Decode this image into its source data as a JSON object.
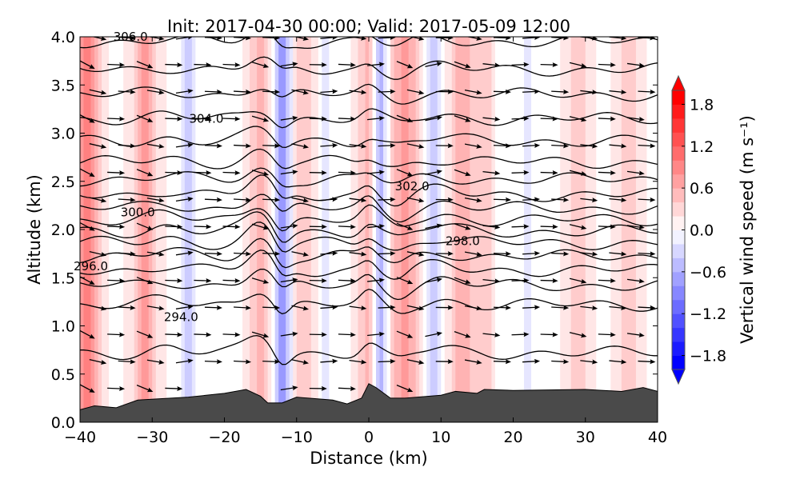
{
  "chart_data": {
    "type": "heatmap",
    "title": "Init: 2017-04-30 00:00; Valid: 2017-05-09 12:00",
    "xlabel": "Distance (km)",
    "ylabel": "Altitude (km)",
    "xlim": [
      -40,
      40
    ],
    "ylim": [
      0,
      4.0
    ],
    "xticks": [
      "−40",
      "−30",
      "−20",
      "−10",
      "0",
      "10",
      "20",
      "30",
      "40"
    ],
    "xtick_values": [
      -40,
      -30,
      -20,
      -10,
      0,
      10,
      20,
      30,
      40
    ],
    "yticks": [
      "0.0",
      "0.5",
      "1.0",
      "1.5",
      "2.0",
      "2.5",
      "3.0",
      "3.5",
      "4.0"
    ],
    "ytick_values": [
      0,
      0.5,
      1.0,
      1.5,
      2.0,
      2.5,
      3.0,
      3.5,
      4.0
    ],
    "colorbar": {
      "label": "Vertical wind speed (m s⁻¹)",
      "range": [
        -2.0,
        2.0
      ],
      "step": 0.2,
      "ticks": [
        "1.8",
        "1.2",
        "0.6",
        "0.0",
        "−0.6",
        "−1.2",
        "−1.8"
      ],
      "tick_values": [
        1.8,
        1.2,
        0.6,
        0.0,
        -0.6,
        -1.2,
        -1.8
      ],
      "cmap": "bwr",
      "extend": "both"
    },
    "contour_labels": [
      {
        "text": "306.0",
        "x": -33,
        "alt": 4.0
      },
      {
        "text": "304.0",
        "x": -22.5,
        "alt": 3.15
      },
      {
        "text": "302.0",
        "x": 6,
        "alt": 2.45
      },
      {
        "text": "300.0",
        "x": -32,
        "alt": 2.18
      },
      {
        "text": "298.0",
        "x": 13,
        "alt": 1.88
      },
      {
        "text": "296.0",
        "x": -38.5,
        "alt": 1.62
      },
      {
        "text": "294.0",
        "x": -26,
        "alt": 1.09
      }
    ],
    "contour_base_altitudes": [
      0.72,
      1.22,
      1.42,
      1.58,
      1.72,
      1.86,
      1.98,
      2.1,
      2.22,
      2.36,
      2.52,
      2.7,
      2.92,
      3.15,
      3.4,
      3.66,
      3.95
    ],
    "w_stripes": [
      {
        "x": -39,
        "w": 0.9,
        "halfwidth": 1.6,
        "top": 1.3
      },
      {
        "x": -31,
        "w": 0.7,
        "halfwidth": 1.5,
        "top": 1.1
      },
      {
        "x": -25,
        "w": -0.5,
        "halfwidth": 1.0,
        "top": 0.9
      },
      {
        "x": -15,
        "w": 0.5,
        "halfwidth": 1.5,
        "top": 4.0
      },
      {
        "x": -12,
        "w": -0.9,
        "halfwidth": 1.2,
        "top": 4.0
      },
      {
        "x": -9,
        "w": 0.4,
        "halfwidth": 1.5,
        "top": 4.0
      },
      {
        "x": -6,
        "w": -0.3,
        "halfwidth": 1.0,
        "top": 4.0
      },
      {
        "x": 0,
        "w": 0.5,
        "halfwidth": 1.5,
        "top": 4.0
      },
      {
        "x": 1.5,
        "w": -0.8,
        "halfwidth": 1.0,
        "top": 4.0
      },
      {
        "x": 5,
        "w": 0.7,
        "halfwidth": 1.8,
        "top": 4.0
      },
      {
        "x": 9,
        "w": -0.5,
        "halfwidth": 1.2,
        "top": 1.6
      },
      {
        "x": 13,
        "w": 0.6,
        "halfwidth": 1.6,
        "top": 4.0
      },
      {
        "x": 16,
        "w": 0.4,
        "halfwidth": 1.0,
        "top": 1.2
      },
      {
        "x": 22,
        "w": -0.2,
        "halfwidth": 2.0,
        "top": 4.0
      },
      {
        "x": 29,
        "w": 0.4,
        "halfwidth": 1.5,
        "top": 4.0
      },
      {
        "x": 36,
        "w": 0.3,
        "halfwidth": 1.5,
        "top": 4.0
      }
    ],
    "terrain": {
      "x": [
        -40,
        -38,
        -35,
        -32,
        -25,
        -20,
        -17,
        -15,
        -14,
        -12,
        -10,
        -5,
        -3,
        -1,
        0,
        1,
        3,
        5,
        10,
        12,
        15,
        16,
        20,
        30,
        35,
        38,
        40
      ],
      "alt": [
        0.13,
        0.17,
        0.15,
        0.23,
        0.26,
        0.3,
        0.34,
        0.27,
        0.2,
        0.2,
        0.26,
        0.23,
        0.19,
        0.25,
        0.4,
        0.36,
        0.25,
        0.25,
        0.28,
        0.32,
        0.3,
        0.34,
        0.33,
        0.34,
        0.32,
        0.36,
        0.32
      ]
    }
  }
}
